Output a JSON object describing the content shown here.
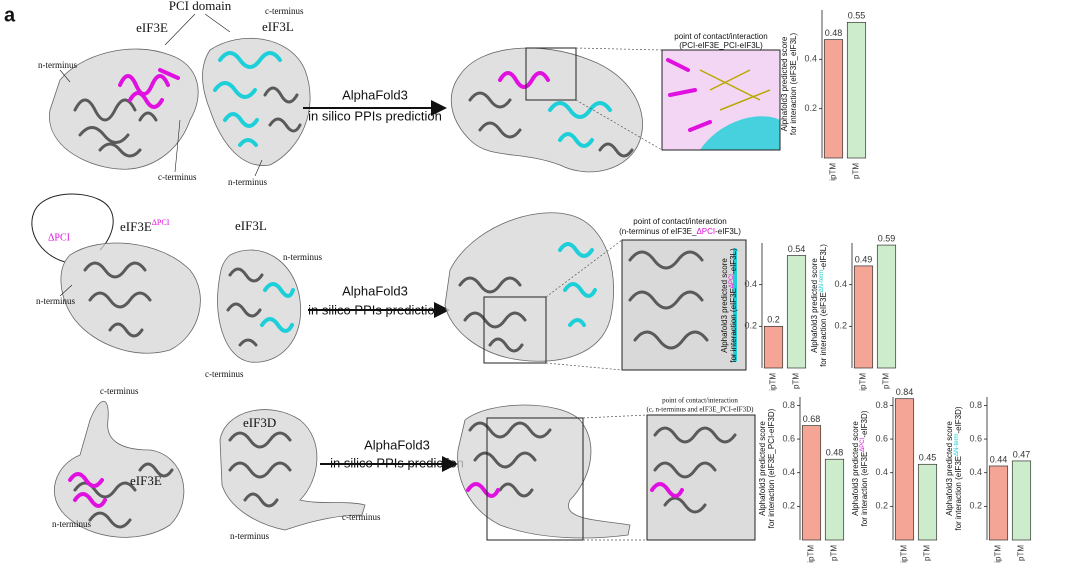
{
  "panel_label": "a",
  "rows": [
    {
      "labels": [
        "PCI domain",
        "eIF3E",
        "n-terminus",
        "c-terminus",
        "eIF3L",
        "c-terminus",
        "n-terminus"
      ],
      "arrow": [
        "AlphaFold3",
        "in silico PPIs prediction"
      ],
      "inset_title": [
        "point of contact/interaction",
        "(PCI-eIF3E_PCI-eIF3L)"
      ]
    },
    {
      "labels": [
        "ΔPCI",
        "eIF3E",
        "ΔPCI",
        "n-terminus",
        "eIF3L",
        "n-terminus",
        "c-terminus"
      ],
      "arrow": [
        "AlphaFold3",
        "in silico PPIs prediction"
      ],
      "inset_title": [
        "point of contact/interaction",
        "(n-terminus of eIF3E_",
        "ΔPCI",
        "-eIF3L)"
      ]
    },
    {
      "labels": [
        "c-terminus",
        "eIF3E",
        "n-terminus",
        "eIF3D",
        "n-terminus",
        "c-terminus"
      ],
      "arrow": [
        "AlphaFold3",
        "in silico PPIs prediction"
      ],
      "inset_title": [
        "point of contact/interaction",
        "(c, n-terminus and eIF3E_PCI-eIF3D)"
      ]
    }
  ],
  "chart_data": [
    {
      "type": "bar",
      "ylabel": "Alphafold3 predicted score",
      "ylabel2": [
        "for interaction (eIF3E_eIF3L)"
      ],
      "categories": [
        "ipTM",
        "pTM"
      ],
      "values": [
        0.48,
        0.55
      ],
      "colors": [
        "#f4a595",
        "#cdeccb"
      ],
      "ylim": [
        0,
        0.6
      ],
      "yticks": [
        0.2,
        0.4
      ]
    },
    {
      "type": "bar",
      "ylabel": "Alphafold3 predicted score",
      "ylabel2": [
        "for interaction (eIF3E",
        "ΔPCI",
        "-eIF3L)"
      ],
      "sup_color": "#e010e0",
      "categories": [
        "ipTM",
        "pTM"
      ],
      "values": [
        0.2,
        0.54
      ],
      "colors": [
        "#f4a595",
        "#cdeccb"
      ],
      "ylim": [
        0,
        0.6
      ],
      "yticks": [
        0.2,
        0.4
      ]
    },
    {
      "type": "bar",
      "ylabel": "Alphafold3 predicted score",
      "ylabel2": [
        "for interaction (eIF3E",
        "ΔN-term",
        "-eIF3L)"
      ],
      "sup_color": "#1ccfd8",
      "categories": [
        "ipTM",
        "pTM"
      ],
      "values": [
        0.49,
        0.59
      ],
      "colors": [
        "#f4a595",
        "#cdeccb"
      ],
      "ylim": [
        0,
        0.6
      ],
      "yticks": [
        0.2,
        0.4
      ]
    },
    {
      "type": "bar",
      "ylabel": "Alphafold3 predicted score",
      "ylabel2": [
        "for interaction (eIF3E_PCI-eIF3D)"
      ],
      "categories": [
        "ipTM",
        "pTM"
      ],
      "values": [
        0.68,
        0.48
      ],
      "colors": [
        "#f4a595",
        "#cdeccb"
      ],
      "ylim": [
        0,
        0.85
      ],
      "yticks": [
        0.2,
        0.4,
        0.6,
        0.8
      ]
    },
    {
      "type": "bar",
      "ylabel": "Alphafold3 predicted score",
      "ylabel2": [
        "for interaction (eIF3E",
        "ΔPCI",
        "-eIF3D)"
      ],
      "sup_color": "#e010e0",
      "categories": [
        "ipTM",
        "pTM"
      ],
      "values": [
        0.84,
        0.45
      ],
      "colors": [
        "#f4a595",
        "#cdeccb"
      ],
      "ylim": [
        0,
        0.85
      ],
      "yticks": [
        0.2,
        0.4,
        0.6,
        0.8
      ]
    },
    {
      "type": "bar",
      "ylabel": "Alphafold3 predicted score",
      "ylabel2": [
        "for interaction (eIF3E",
        "ΔN-term",
        "-eIF3D)"
      ],
      "sup_color": "#1ccfd8",
      "categories": [
        "ipTM",
        "pTM"
      ],
      "values": [
        0.44,
        0.47
      ],
      "colors": [
        "#f4a595",
        "#cdeccb"
      ],
      "ylim": [
        0,
        0.85
      ],
      "yticks": [
        0.2,
        0.4,
        0.6,
        0.8
      ]
    }
  ]
}
